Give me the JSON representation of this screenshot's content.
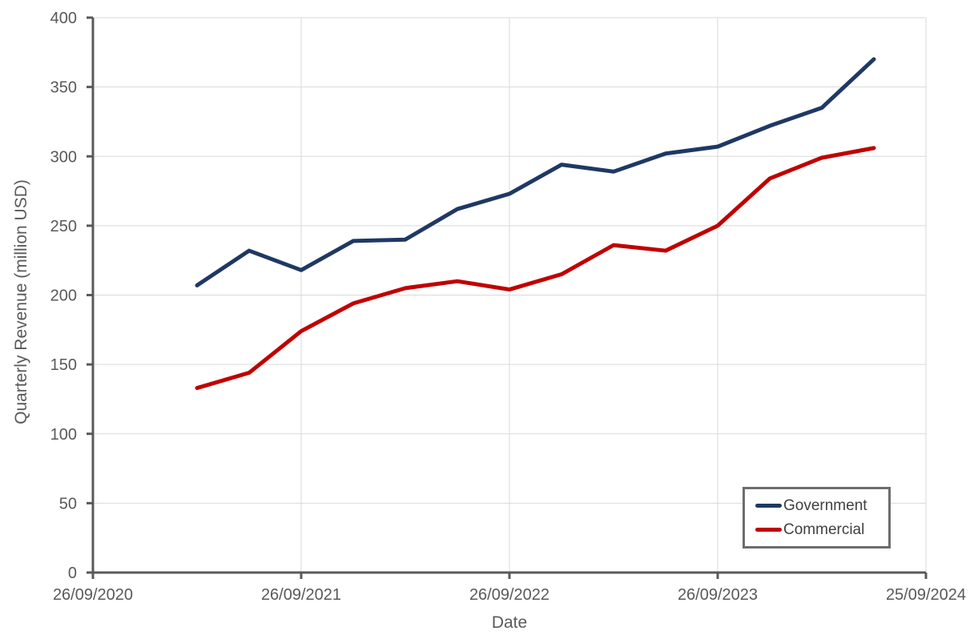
{
  "chart_data": {
    "type": "line",
    "title": "",
    "xlabel": "Date",
    "ylabel": "Quarterly Revenue (million USD)",
    "ylim": [
      0,
      400
    ],
    "y_ticks": [
      0,
      50,
      100,
      150,
      200,
      250,
      300,
      350,
      400
    ],
    "x_tick_labels": [
      "26/09/2020",
      "26/09/2021",
      "26/09/2022",
      "26/09/2023",
      "25/09/2024"
    ],
    "x_tick_years": [
      0,
      1,
      2,
      3,
      4
    ],
    "x_range_years": [
      0,
      4
    ],
    "points_x_years": [
      0.5,
      0.75,
      1.0,
      1.25,
      1.5,
      1.75,
      2.0,
      2.25,
      2.5,
      2.75,
      3.0,
      3.25,
      3.5,
      3.75
    ],
    "series": [
      {
        "name": "Government",
        "color": "#1f3864",
        "values": [
          207,
          232,
          218,
          239,
          240,
          262,
          273,
          294,
          289,
          302,
          307,
          322,
          335,
          370
        ]
      },
      {
        "name": "Commercial",
        "color": "#c00000",
        "values": [
          133,
          144,
          174,
          194,
          205,
          210,
          204,
          215,
          236,
          232,
          250,
          284,
          299,
          306
        ]
      }
    ],
    "grid": true,
    "gridline_color": "#d9d9d9",
    "axis_color": "#595959",
    "tick_label_color": "#595959",
    "legend_position": "bottom-right"
  }
}
